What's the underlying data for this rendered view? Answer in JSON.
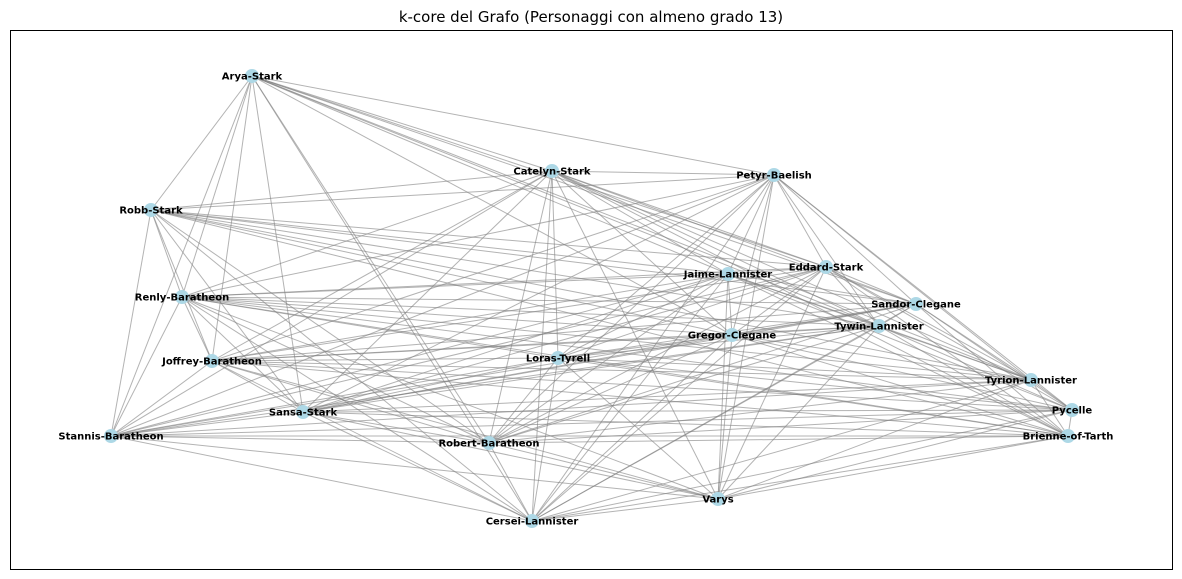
{
  "title": "k-core del Grafo (Personaggi con almeno grado 13)",
  "colors": {
    "node_fill": "#add8e6",
    "edge_stroke": "#808080",
    "frame": "#000000",
    "label": "#000000"
  },
  "nodes": [
    {
      "id": "Arya-Stark",
      "label": "Arya-Stark"
    },
    {
      "id": "Catelyn-Stark",
      "label": "Catelyn-Stark"
    },
    {
      "id": "Petyr-Baelish",
      "label": "Petyr-Baelish"
    },
    {
      "id": "Robb-Stark",
      "label": "Robb-Stark"
    },
    {
      "id": "Eddard-Stark",
      "label": "Eddard-Stark"
    },
    {
      "id": "Jaime-Lannister",
      "label": "Jaime-Lannister"
    },
    {
      "id": "Renly-Baratheon",
      "label": "Renly-Baratheon"
    },
    {
      "id": "Sandor-Clegane",
      "label": "Sandor-Clegane"
    },
    {
      "id": "Tywin-Lannister",
      "label": "Tywin-Lannister"
    },
    {
      "id": "Gregor-Clegane",
      "label": "Gregor-Clegane"
    },
    {
      "id": "Joffrey-Baratheon",
      "label": "Joffrey-Baratheon"
    },
    {
      "id": "Loras-Tyrell",
      "label": "Loras-Tyrell"
    },
    {
      "id": "Tyrion-Lannister",
      "label": "Tyrion-Lannister"
    },
    {
      "id": "Sansa-Stark",
      "label": "Sansa-Stark"
    },
    {
      "id": "Pycelle",
      "label": "Pycelle"
    },
    {
      "id": "Stannis-Baratheon",
      "label": "Stannis-Baratheon"
    },
    {
      "id": "Robert-Baratheon",
      "label": "Robert-Baratheon"
    },
    {
      "id": "Brienne-of-Tarth",
      "label": "Brienne-of-Tarth"
    },
    {
      "id": "Varys",
      "label": "Varys"
    },
    {
      "id": "Cersei-Lannister",
      "label": "Cersei-Lannister"
    }
  ],
  "edges": [
    [
      "Arya-Stark",
      "Robb-Stark"
    ],
    [
      "Arya-Stark",
      "Catelyn-Stark"
    ],
    [
      "Arya-Stark",
      "Petyr-Baelish"
    ],
    [
      "Arya-Stark",
      "Eddard-Stark"
    ],
    [
      "Arya-Stark",
      "Jaime-Lannister"
    ],
    [
      "Arya-Stark",
      "Sandor-Clegane"
    ],
    [
      "Arya-Stark",
      "Tywin-Lannister"
    ],
    [
      "Arya-Stark",
      "Gregor-Clegane"
    ],
    [
      "Arya-Stark",
      "Renly-Baratheon"
    ],
    [
      "Arya-Stark",
      "Joffrey-Baratheon"
    ],
    [
      "Arya-Stark",
      "Sansa-Stark"
    ],
    [
      "Arya-Stark",
      "Robert-Baratheon"
    ],
    [
      "Arya-Stark",
      "Stannis-Baratheon"
    ],
    [
      "Arya-Stark",
      "Tyrion-Lannister"
    ],
    [
      "Arya-Stark",
      "Cersei-Lannister"
    ],
    [
      "Catelyn-Stark",
      "Petyr-Baelish"
    ],
    [
      "Catelyn-Stark",
      "Robb-Stark"
    ],
    [
      "Catelyn-Stark",
      "Eddard-Stark"
    ],
    [
      "Catelyn-Stark",
      "Jaime-Lannister"
    ],
    [
      "Catelyn-Stark",
      "Sandor-Clegane"
    ],
    [
      "Catelyn-Stark",
      "Tywin-Lannister"
    ],
    [
      "Catelyn-Stark",
      "Tyrion-Lannister"
    ],
    [
      "Catelyn-Stark",
      "Loras-Tyrell"
    ],
    [
      "Catelyn-Stark",
      "Renly-Baratheon"
    ],
    [
      "Catelyn-Stark",
      "Joffrey-Baratheon"
    ],
    [
      "Catelyn-Stark",
      "Sansa-Stark"
    ],
    [
      "Catelyn-Stark",
      "Robert-Baratheon"
    ],
    [
      "Catelyn-Stark",
      "Cersei-Lannister"
    ],
    [
      "Catelyn-Stark",
      "Varys"
    ],
    [
      "Catelyn-Stark",
      "Stannis-Baratheon"
    ],
    [
      "Catelyn-Stark",
      "Brienne-of-Tarth"
    ],
    [
      "Catelyn-Stark",
      "Gregor-Clegane"
    ],
    [
      "Petyr-Baelish",
      "Robb-Stark"
    ],
    [
      "Petyr-Baelish",
      "Eddard-Stark"
    ],
    [
      "Petyr-Baelish",
      "Jaime-Lannister"
    ],
    [
      "Petyr-Baelish",
      "Sandor-Clegane"
    ],
    [
      "Petyr-Baelish",
      "Tywin-Lannister"
    ],
    [
      "Petyr-Baelish",
      "Tyrion-Lannister"
    ],
    [
      "Petyr-Baelish",
      "Gregor-Clegane"
    ],
    [
      "Petyr-Baelish",
      "Loras-Tyrell"
    ],
    [
      "Petyr-Baelish",
      "Renly-Baratheon"
    ],
    [
      "Petyr-Baelish",
      "Joffrey-Baratheon"
    ],
    [
      "Petyr-Baelish",
      "Sansa-Stark"
    ],
    [
      "Petyr-Baelish",
      "Robert-Baratheon"
    ],
    [
      "Petyr-Baelish",
      "Cersei-Lannister"
    ],
    [
      "Petyr-Baelish",
      "Varys"
    ],
    [
      "Petyr-Baelish",
      "Pycelle"
    ],
    [
      "Petyr-Baelish",
      "Stannis-Baratheon"
    ],
    [
      "Robb-Stark",
      "Eddard-Stark"
    ],
    [
      "Robb-Stark",
      "Jaime-Lannister"
    ],
    [
      "Robb-Stark",
      "Sandor-Clegane"
    ],
    [
      "Robb-Stark",
      "Tywin-Lannister"
    ],
    [
      "Robb-Stark",
      "Tyrion-Lannister"
    ],
    [
      "Robb-Stark",
      "Gregor-Clegane"
    ],
    [
      "Robb-Stark",
      "Renly-Baratheon"
    ],
    [
      "Robb-Stark",
      "Joffrey-Baratheon"
    ],
    [
      "Robb-Stark",
      "Sansa-Stark"
    ],
    [
      "Robb-Stark",
      "Robert-Baratheon"
    ],
    [
      "Robb-Stark",
      "Cersei-Lannister"
    ],
    [
      "Robb-Stark",
      "Stannis-Baratheon"
    ],
    [
      "Robb-Stark",
      "Brienne-of-Tarth"
    ],
    [
      "Eddard-Stark",
      "Jaime-Lannister"
    ],
    [
      "Eddard-Stark",
      "Sandor-Clegane"
    ],
    [
      "Eddard-Stark",
      "Tywin-Lannister"
    ],
    [
      "Eddard-Stark",
      "Tyrion-Lannister"
    ],
    [
      "Eddard-Stark",
      "Gregor-Clegane"
    ],
    [
      "Eddard-Stark",
      "Loras-Tyrell"
    ],
    [
      "Eddard-Stark",
      "Renly-Baratheon"
    ],
    [
      "Eddard-Stark",
      "Joffrey-Baratheon"
    ],
    [
      "Eddard-Stark",
      "Sansa-Stark"
    ],
    [
      "Eddard-Stark",
      "Robert-Baratheon"
    ],
    [
      "Eddard-Stark",
      "Cersei-Lannister"
    ],
    [
      "Eddard-Stark",
      "Varys"
    ],
    [
      "Eddard-Stark",
      "Pycelle"
    ],
    [
      "Eddard-Stark",
      "Stannis-Baratheon"
    ],
    [
      "Eddard-Stark",
      "Brienne-of-Tarth"
    ],
    [
      "Jaime-Lannister",
      "Sandor-Clegane"
    ],
    [
      "Jaime-Lannister",
      "Tywin-Lannister"
    ],
    [
      "Jaime-Lannister",
      "Tyrion-Lannister"
    ],
    [
      "Jaime-Lannister",
      "Gregor-Clegane"
    ],
    [
      "Jaime-Lannister",
      "Loras-Tyrell"
    ],
    [
      "Jaime-Lannister",
      "Renly-Baratheon"
    ],
    [
      "Jaime-Lannister",
      "Joffrey-Baratheon"
    ],
    [
      "Jaime-Lannister",
      "Sansa-Stark"
    ],
    [
      "Jaime-Lannister",
      "Robert-Baratheon"
    ],
    [
      "Jaime-Lannister",
      "Cersei-Lannister"
    ],
    [
      "Jaime-Lannister",
      "Varys"
    ],
    [
      "Jaime-Lannister",
      "Pycelle"
    ],
    [
      "Jaime-Lannister",
      "Stannis-Baratheon"
    ],
    [
      "Jaime-Lannister",
      "Brienne-of-Tarth"
    ],
    [
      "Renly-Baratheon",
      "Sandor-Clegane"
    ],
    [
      "Renly-Baratheon",
      "Tywin-Lannister"
    ],
    [
      "Renly-Baratheon",
      "Tyrion-Lannister"
    ],
    [
      "Renly-Baratheon",
      "Loras-Tyrell"
    ],
    [
      "Renly-Baratheon",
      "Joffrey-Baratheon"
    ],
    [
      "Renly-Baratheon",
      "Sansa-Stark"
    ],
    [
      "Renly-Baratheon",
      "Robert-Baratheon"
    ],
    [
      "Renly-Baratheon",
      "Cersei-Lannister"
    ],
    [
      "Renly-Baratheon",
      "Stannis-Baratheon"
    ],
    [
      "Renly-Baratheon",
      "Brienne-of-Tarth"
    ],
    [
      "Renly-Baratheon",
      "Pycelle"
    ],
    [
      "Renly-Baratheon",
      "Varys"
    ],
    [
      "Renly-Baratheon",
      "Gregor-Clegane"
    ],
    [
      "Sandor-Clegane",
      "Tywin-Lannister"
    ],
    [
      "Sandor-Clegane",
      "Tyrion-Lannister"
    ],
    [
      "Sandor-Clegane",
      "Gregor-Clegane"
    ],
    [
      "Sandor-Clegane",
      "Loras-Tyrell"
    ],
    [
      "Sandor-Clegane",
      "Joffrey-Baratheon"
    ],
    [
      "Sandor-Clegane",
      "Sansa-Stark"
    ],
    [
      "Sandor-Clegane",
      "Robert-Baratheon"
    ],
    [
      "Sandor-Clegane",
      "Cersei-Lannister"
    ],
    [
      "Sandor-Clegane",
      "Pycelle"
    ],
    [
      "Sandor-Clegane",
      "Brienne-of-Tarth"
    ],
    [
      "Sandor-Clegane",
      "Stannis-Baratheon"
    ],
    [
      "Tywin-Lannister",
      "Tyrion-Lannister"
    ],
    [
      "Tywin-Lannister",
      "Gregor-Clegane"
    ],
    [
      "Tywin-Lannister",
      "Loras-Tyrell"
    ],
    [
      "Tywin-Lannister",
      "Joffrey-Baratheon"
    ],
    [
      "Tywin-Lannister",
      "Sansa-Stark"
    ],
    [
      "Tywin-Lannister",
      "Robert-Baratheon"
    ],
    [
      "Tywin-Lannister",
      "Cersei-Lannister"
    ],
    [
      "Tywin-Lannister",
      "Varys"
    ],
    [
      "Tywin-Lannister",
      "Pycelle"
    ],
    [
      "Tywin-Lannister",
      "Stannis-Baratheon"
    ],
    [
      "Tywin-Lannister",
      "Brienne-of-Tarth"
    ],
    [
      "Gregor-Clegane",
      "Tyrion-Lannister"
    ],
    [
      "Gregor-Clegane",
      "Loras-Tyrell"
    ],
    [
      "Gregor-Clegane",
      "Joffrey-Baratheon"
    ],
    [
      "Gregor-Clegane",
      "Sansa-Stark"
    ],
    [
      "Gregor-Clegane",
      "Robert-Baratheon"
    ],
    [
      "Gregor-Clegane",
      "Cersei-Lannister"
    ],
    [
      "Gregor-Clegane",
      "Varys"
    ],
    [
      "Gregor-Clegane",
      "Pycelle"
    ],
    [
      "Gregor-Clegane",
      "Brienne-of-Tarth"
    ],
    [
      "Joffrey-Baratheon",
      "Loras-Tyrell"
    ],
    [
      "Joffrey-Baratheon",
      "Tyrion-Lannister"
    ],
    [
      "Joffrey-Baratheon",
      "Sansa-Stark"
    ],
    [
      "Joffrey-Baratheon",
      "Robert-Baratheon"
    ],
    [
      "Joffrey-Baratheon",
      "Cersei-Lannister"
    ],
    [
      "Joffrey-Baratheon",
      "Stannis-Baratheon"
    ],
    [
      "Joffrey-Baratheon",
      "Pycelle"
    ],
    [
      "Joffrey-Baratheon",
      "Varys"
    ],
    [
      "Joffrey-Baratheon",
      "Brienne-of-Tarth"
    ],
    [
      "Loras-Tyrell",
      "Tyrion-Lannister"
    ],
    [
      "Loras-Tyrell",
      "Sansa-Stark"
    ],
    [
      "Loras-Tyrell",
      "Robert-Baratheon"
    ],
    [
      "Loras-Tyrell",
      "Cersei-Lannister"
    ],
    [
      "Loras-Tyrell",
      "Brienne-of-Tarth"
    ],
    [
      "Loras-Tyrell",
      "Stannis-Baratheon"
    ],
    [
      "Loras-Tyrell",
      "Pycelle"
    ],
    [
      "Loras-Tyrell",
      "Varys"
    ],
    [
      "Tyrion-Lannister",
      "Sansa-Stark"
    ],
    [
      "Tyrion-Lannister",
      "Robert-Baratheon"
    ],
    [
      "Tyrion-Lannister",
      "Cersei-Lannister"
    ],
    [
      "Tyrion-Lannister",
      "Varys"
    ],
    [
      "Tyrion-Lannister",
      "Pycelle"
    ],
    [
      "Tyrion-Lannister",
      "Stannis-Baratheon"
    ],
    [
      "Tyrion-Lannister",
      "Brienne-of-Tarth"
    ],
    [
      "Sansa-Stark",
      "Robert-Baratheon"
    ],
    [
      "Sansa-Stark",
      "Cersei-Lannister"
    ],
    [
      "Sansa-Stark",
      "Varys"
    ],
    [
      "Sansa-Stark",
      "Pycelle"
    ],
    [
      "Sansa-Stark",
      "Stannis-Baratheon"
    ],
    [
      "Sansa-Stark",
      "Brienne-of-Tarth"
    ],
    [
      "Pycelle",
      "Robert-Baratheon"
    ],
    [
      "Pycelle",
      "Cersei-Lannister"
    ],
    [
      "Pycelle",
      "Varys"
    ],
    [
      "Pycelle",
      "Stannis-Baratheon"
    ],
    [
      "Pycelle",
      "Brienne-of-Tarth"
    ],
    [
      "Stannis-Baratheon",
      "Robert-Baratheon"
    ],
    [
      "Stannis-Baratheon",
      "Cersei-Lannister"
    ],
    [
      "Stannis-Baratheon",
      "Brienne-of-Tarth"
    ],
    [
      "Stannis-Baratheon",
      "Varys"
    ],
    [
      "Robert-Baratheon",
      "Cersei-Lannister"
    ],
    [
      "Robert-Baratheon",
      "Varys"
    ],
    [
      "Robert-Baratheon",
      "Brienne-of-Tarth"
    ],
    [
      "Brienne-of-Tarth",
      "Varys"
    ],
    [
      "Brienne-of-Tarth",
      "Cersei-Lannister"
    ],
    [
      "Varys",
      "Cersei-Lannister"
    ]
  ]
}
